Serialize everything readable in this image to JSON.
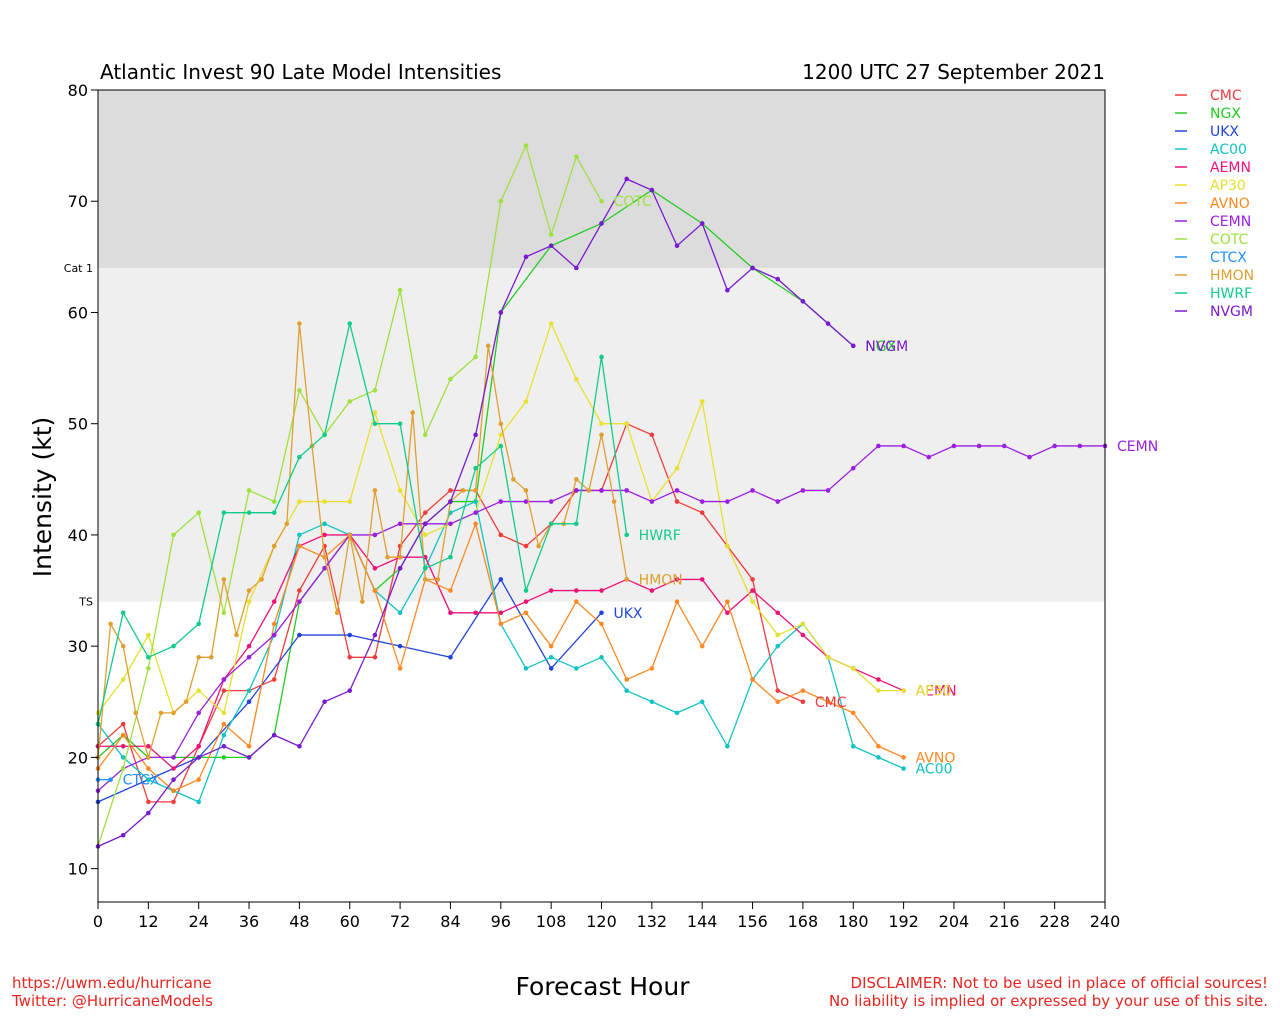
{
  "chart_data": {
    "type": "line",
    "title": "Atlantic Invest 90 Late Model Intensities",
    "subtitle": "1200 UTC 27 September 2021",
    "xlabel": "Forecast Hour",
    "ylabel": "Intensity (kt)",
    "xlim": [
      0,
      240
    ],
    "ylim": [
      7,
      80
    ],
    "xticks": [
      0,
      12,
      24,
      36,
      48,
      60,
      72,
      84,
      96,
      108,
      120,
      132,
      144,
      156,
      168,
      180,
      192,
      204,
      216,
      228,
      240
    ],
    "yticks": [
      10,
      20,
      30,
      40,
      50,
      60,
      70,
      80
    ],
    "bands": [
      {
        "from": 64,
        "to": 80,
        "color": "#dcdcdc",
        "label": "Cat 1"
      },
      {
        "from": 34,
        "to": 64,
        "color": "#efefef",
        "label": "TS"
      }
    ],
    "legend_position": "right",
    "series": [
      {
        "name": "CMC",
        "color": "#f03c3c",
        "x": [
          0,
          6,
          12,
          18,
          24,
          30,
          36,
          42,
          48,
          54,
          60,
          66,
          72,
          78,
          84,
          90,
          96,
          102,
          108,
          114,
          120,
          126,
          132,
          138,
          144,
          150,
          156,
          162,
          168
        ],
        "y": [
          21,
          23,
          16,
          16,
          21,
          26,
          26,
          27,
          35,
          39,
          29,
          29,
          39,
          42,
          44,
          44,
          40,
          39,
          41,
          44,
          44,
          50,
          49,
          43,
          42,
          39,
          36,
          26,
          25
        ],
        "end_label": "CMC"
      },
      {
        "name": "NGX",
        "color": "#22cc22",
        "x": [
          0,
          6,
          12,
          18,
          24,
          30,
          36,
          42,
          48,
          54,
          60,
          66,
          72,
          78,
          84,
          90,
          96,
          108,
          120,
          132,
          144,
          156,
          168,
          180
        ],
        "y": [
          20,
          22,
          20,
          20,
          20,
          20,
          20,
          22,
          34,
          37,
          40,
          35,
          37,
          41,
          43,
          43,
          60,
          66,
          68,
          71,
          68,
          64,
          61,
          57
        ],
        "end_label": "NGX"
      },
      {
        "name": "UKX",
        "color": "#2244dd",
        "x": [
          0,
          12,
          24,
          36,
          48,
          60,
          72,
          84,
          96,
          108,
          120
        ],
        "y": [
          16,
          18,
          20,
          25,
          31,
          31,
          30,
          29,
          36,
          28,
          33
        ],
        "end_label": "UKX"
      },
      {
        "name": "AC00",
        "color": "#11c4c4",
        "x": [
          0,
          6,
          12,
          18,
          24,
          30,
          36,
          42,
          48,
          54,
          60,
          66,
          72,
          78,
          84,
          90,
          96,
          102,
          108,
          114,
          120,
          126,
          132,
          138,
          144,
          150,
          156,
          162,
          168,
          174,
          180,
          186,
          192
        ],
        "y": [
          23,
          20,
          18,
          17,
          16,
          22,
          26,
          31,
          40,
          41,
          40,
          35,
          33,
          37,
          42,
          43,
          32,
          28,
          29,
          28,
          29,
          26,
          25,
          24,
          25,
          21,
          27,
          30,
          32,
          29,
          21,
          20,
          19
        ],
        "end_label": "AC00"
      },
      {
        "name": "AEMN",
        "color": "#ee1177",
        "x": [
          0,
          6,
          12,
          18,
          24,
          30,
          36,
          42,
          48,
          54,
          60,
          66,
          72,
          78,
          84,
          90,
          96,
          102,
          108,
          114,
          120,
          126,
          132,
          138,
          144,
          150,
          156,
          162,
          168,
          174,
          180,
          186,
          192
        ],
        "y": [
          21,
          21,
          21,
          19,
          21,
          27,
          30,
          34,
          39,
          40,
          40,
          37,
          38,
          38,
          33,
          33,
          33,
          34,
          35,
          35,
          35,
          36,
          35,
          36,
          36,
          33,
          35,
          33,
          31,
          29,
          28,
          27,
          26
        ],
        "end_label": "AEMN"
      },
      {
        "name": "AP30",
        "color": "#e6e030",
        "x": [
          0,
          6,
          12,
          18,
          24,
          30,
          36,
          42,
          48,
          54,
          60,
          66,
          72,
          78,
          84,
          90,
          96,
          102,
          108,
          114,
          120,
          126,
          132,
          138,
          144,
          150,
          156,
          162,
          168,
          174,
          180,
          186,
          192
        ],
        "y": [
          24,
          27,
          31,
          24,
          26,
          24,
          34,
          39,
          43,
          43,
          43,
          51,
          44,
          40,
          41,
          42,
          49,
          52,
          59,
          54,
          50,
          50,
          43,
          46,
          52,
          39,
          34,
          31,
          32,
          29,
          28,
          26,
          26
        ],
        "end_label": "AP30"
      },
      {
        "name": "AVNO",
        "color": "#ff8822",
        "x": [
          0,
          6,
          12,
          18,
          24,
          30,
          36,
          42,
          48,
          54,
          60,
          66,
          72,
          78,
          84,
          90,
          96,
          102,
          108,
          114,
          120,
          126,
          132,
          138,
          144,
          150,
          156,
          162,
          168,
          174,
          180,
          186,
          192
        ],
        "y": [
          19,
          22,
          19,
          17,
          18,
          23,
          21,
          32,
          39,
          38,
          40,
          35,
          28,
          36,
          35,
          41,
          32,
          33,
          30,
          34,
          32,
          27,
          28,
          34,
          30,
          34,
          27,
          25,
          26,
          25,
          24,
          21,
          20
        ],
        "end_label": "AVNO"
      },
      {
        "name": "CEMN",
        "color": "#9a1fe0",
        "x": [
          0,
          6,
          12,
          18,
          24,
          30,
          36,
          42,
          48,
          54,
          60,
          66,
          72,
          78,
          84,
          90,
          96,
          102,
          108,
          114,
          120,
          126,
          132,
          138,
          144,
          150,
          156,
          162,
          168,
          174,
          180,
          186,
          192,
          198,
          204,
          210,
          216,
          222,
          228,
          234,
          240
        ],
        "y": [
          17,
          19,
          20,
          20,
          24,
          27,
          29,
          31,
          34,
          37,
          40,
          40,
          41,
          41,
          41,
          42,
          43,
          43,
          43,
          44,
          44,
          44,
          43,
          44,
          43,
          43,
          44,
          43,
          44,
          44,
          46,
          48,
          48,
          47,
          48,
          48,
          48,
          47,
          48,
          48,
          48
        ],
        "end_label": "CEMN"
      },
      {
        "name": "COTC",
        "color": "#a0e040",
        "x": [
          0,
          6,
          12,
          18,
          24,
          30,
          36,
          42,
          48,
          54,
          60,
          66,
          72,
          78,
          84,
          90,
          96,
          102,
          108,
          114,
          120
        ],
        "y": [
          12,
          19,
          28,
          40,
          42,
          33,
          44,
          43,
          53,
          49,
          52,
          53,
          62,
          49,
          54,
          56,
          70,
          75,
          67,
          74,
          70
        ],
        "end_label": "COTC"
      },
      {
        "name": "CTCX",
        "color": "#1e90ff",
        "x": [
          0,
          3
        ],
        "y": [
          18,
          18
        ],
        "end_label": "CTCX"
      },
      {
        "name": "HMON",
        "color": "#e0a030",
        "x": [
          0,
          3,
          6,
          9,
          12,
          15,
          18,
          21,
          24,
          27,
          30,
          33,
          36,
          39,
          42,
          45,
          48,
          51,
          54,
          57,
          60,
          63,
          66,
          69,
          72,
          75,
          78,
          81,
          84,
          87,
          90,
          93,
          96,
          99,
          102,
          105,
          108,
          111,
          114,
          117,
          120,
          123,
          126
        ],
        "y": [
          20,
          32,
          30,
          24,
          20,
          24,
          24,
          25,
          29,
          29,
          36,
          31,
          35,
          36,
          39,
          41,
          59,
          48,
          38,
          33,
          40,
          34,
          44,
          38,
          38,
          51,
          36,
          36,
          43,
          44,
          44,
          57,
          50,
          45,
          44,
          39,
          41,
          41,
          45,
          44,
          49,
          43,
          36
        ],
        "end_label": "HMON"
      },
      {
        "name": "HWRF",
        "color": "#11cc88",
        "x": [
          0,
          6,
          12,
          18,
          24,
          30,
          36,
          42,
          48,
          54,
          60,
          66,
          72,
          78,
          84,
          90,
          96,
          102,
          108,
          114,
          120,
          126
        ],
        "y": [
          23,
          33,
          29,
          30,
          32,
          42,
          42,
          42,
          47,
          49,
          59,
          50,
          50,
          37,
          38,
          46,
          48,
          35,
          41,
          41,
          56,
          40
        ],
        "end_label": "HWRF"
      },
      {
        "name": "NVGM",
        "color": "#7a1ad0",
        "x": [
          0,
          6,
          12,
          18,
          24,
          30,
          36,
          42,
          48,
          54,
          60,
          66,
          72,
          78,
          84,
          90,
          96,
          102,
          108,
          114,
          120,
          126,
          132,
          138,
          144,
          150,
          156,
          162,
          168,
          174,
          180
        ],
        "y": [
          12,
          13,
          15,
          18,
          20,
          21,
          20,
          22,
          21,
          25,
          26,
          31,
          37,
          41,
          43,
          49,
          60,
          65,
          66,
          64,
          68,
          72,
          71,
          66,
          68,
          62,
          64,
          63,
          61,
          59,
          57
        ],
        "end_label": "NVGM"
      }
    ]
  },
  "footer": {
    "left_line1": "https://uwm.edu/hurricane",
    "left_line2": "Twitter: @HurricaneModels",
    "right_line1": "DISCLAIMER: Not to be used in place of official sources!",
    "right_line2": "No liability is implied or expressed by your use of this site."
  }
}
